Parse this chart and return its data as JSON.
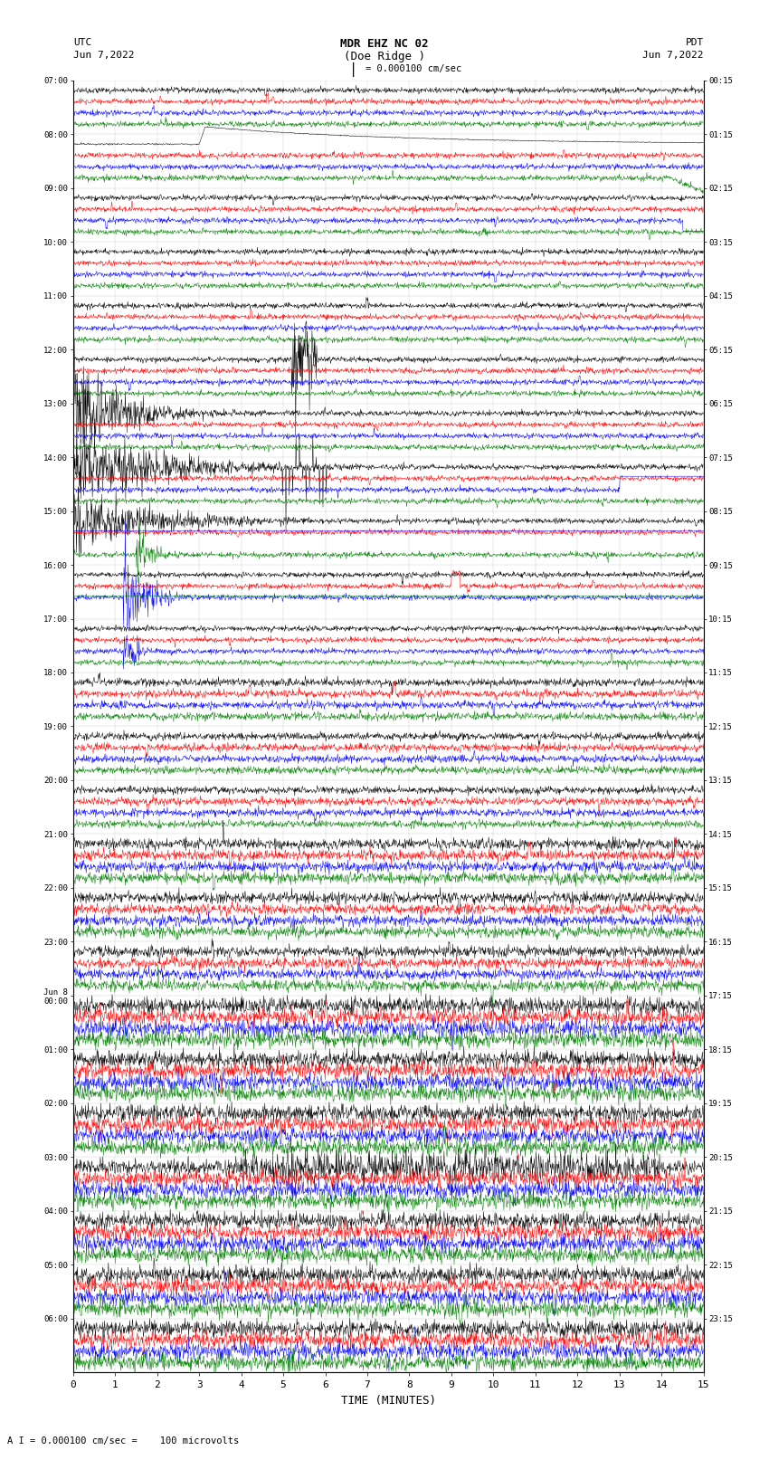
{
  "title_line1": "MDR EHZ NC 02",
  "title_line2": "(Doe Ridge )",
  "title_scale": "I = 0.000100 cm/sec",
  "left_label_top": "UTC",
  "left_label_date": "Jun 7,2022",
  "right_label_top": "PDT",
  "right_label_date": "Jun 7,2022",
  "xlabel": "TIME (MINUTES)",
  "footer": "A I = 0.000100 cm/sec =    100 microvolts",
  "utc_labels": [
    "07:00",
    "08:00",
    "09:00",
    "10:00",
    "11:00",
    "12:00",
    "13:00",
    "14:00",
    "15:00",
    "16:00",
    "17:00",
    "18:00",
    "19:00",
    "20:00",
    "21:00",
    "22:00",
    "23:00",
    "Jun 8\n00:00",
    "01:00",
    "02:00",
    "03:00",
    "04:00",
    "05:00",
    "06:00"
  ],
  "pdt_labels": [
    "00:15",
    "01:15",
    "02:15",
    "03:15",
    "04:15",
    "05:15",
    "06:15",
    "07:15",
    "08:15",
    "09:15",
    "10:15",
    "11:15",
    "12:15",
    "13:15",
    "14:15",
    "15:15",
    "16:15",
    "17:15",
    "18:15",
    "19:15",
    "20:15",
    "21:15",
    "22:15",
    "23:15"
  ],
  "n_rows": 24,
  "trace_colors": [
    "black",
    "red",
    "blue",
    "green"
  ],
  "bg_color": "white",
  "fig_width": 8.5,
  "fig_height": 16.13,
  "dpi": 100,
  "x_min": 0,
  "x_max": 15,
  "x_ticks": [
    0,
    1,
    2,
    3,
    4,
    5,
    6,
    7,
    8,
    9,
    10,
    11,
    12,
    13,
    14,
    15
  ]
}
